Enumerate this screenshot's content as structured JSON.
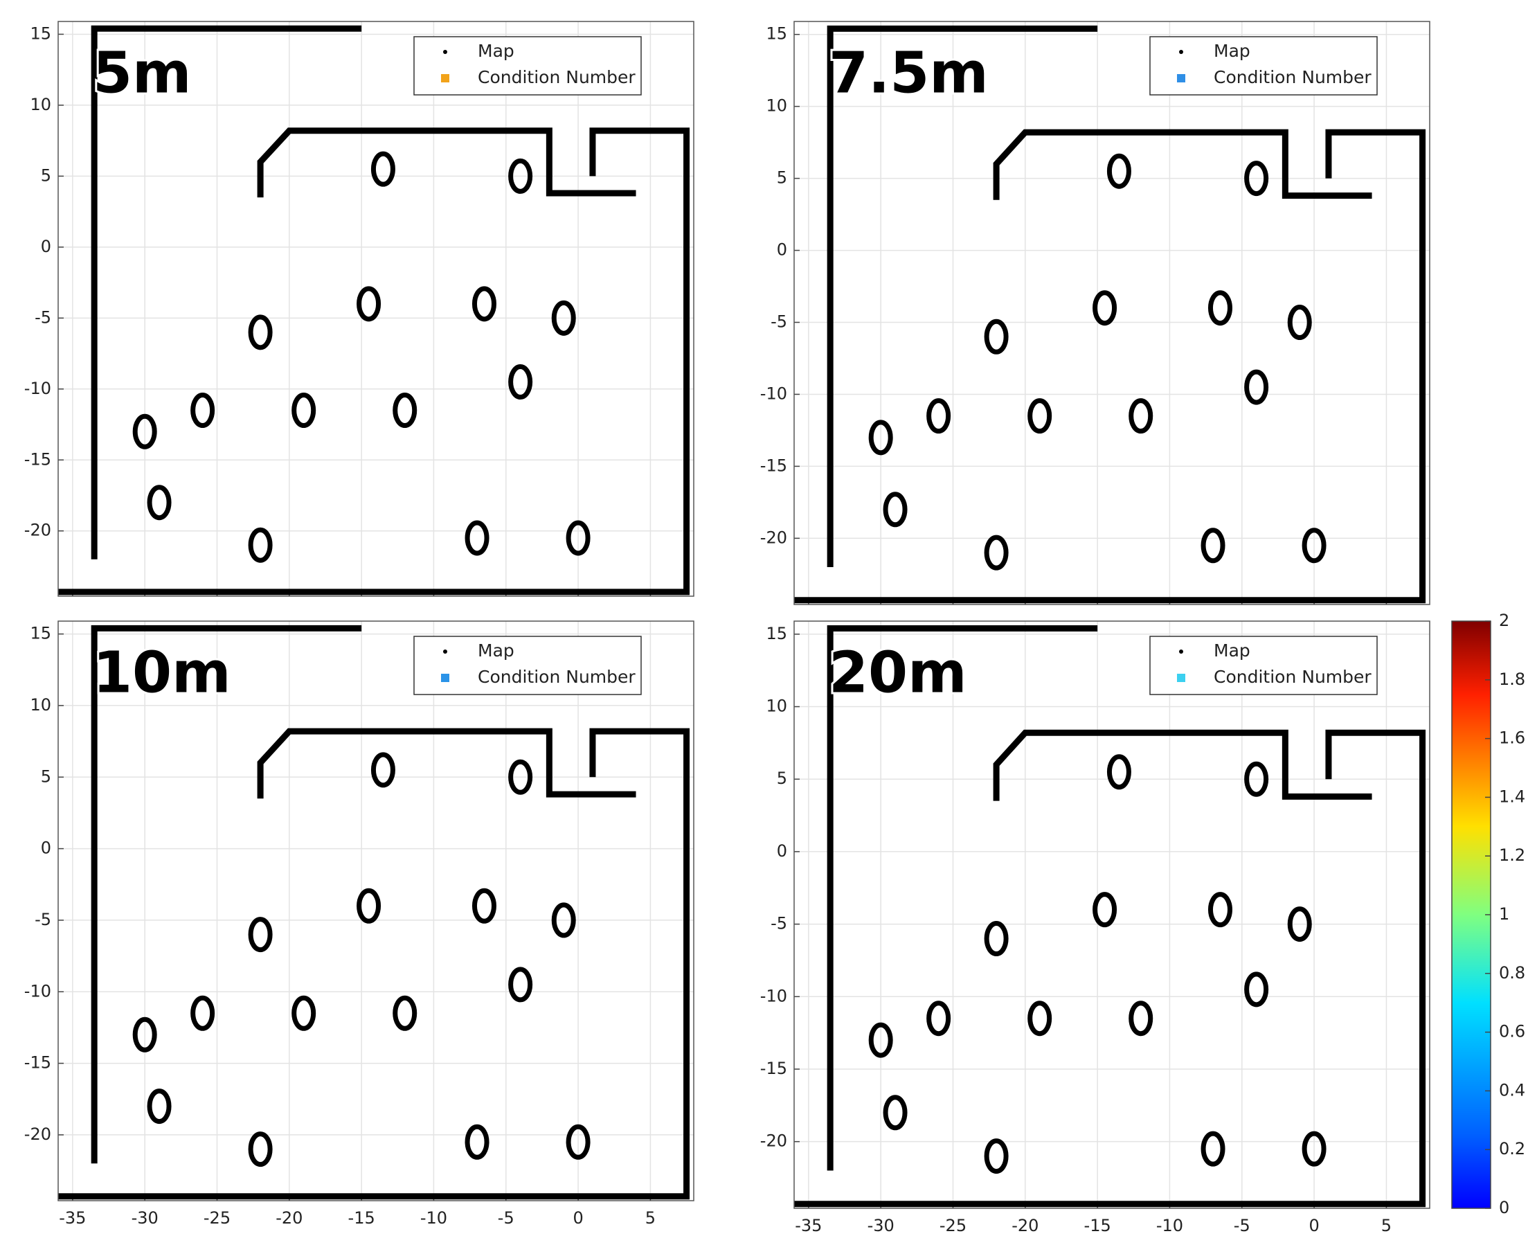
{
  "chart_data": [
    {
      "type": "scatter",
      "title": "5m",
      "xlim": [
        -36,
        8
      ],
      "ylim": [
        -24.6,
        15.9
      ],
      "xticks": [
        -35,
        -30,
        -25,
        -20,
        -15,
        -10,
        -5,
        0,
        5
      ],
      "yticks": [
        -20,
        -15,
        -10,
        -5,
        0,
        5,
        10,
        15
      ],
      "xtick_labels_shown": false,
      "grid": true,
      "series": [
        {
          "name": "Map",
          "color": "#000000"
        },
        {
          "name": "Condition Number",
          "color": "#f2a31a"
        }
      ]
    },
    {
      "type": "scatter",
      "title": "7.5m",
      "xlim": [
        -36,
        8
      ],
      "ylim": [
        -24.6,
        15.9
      ],
      "xticks": [
        -35,
        -30,
        -25,
        -20,
        -15,
        -10,
        -5,
        0,
        5
      ],
      "yticks": [
        -20,
        -15,
        -10,
        -5,
        0,
        5,
        10,
        15
      ],
      "xtick_labels_shown": false,
      "grid": true,
      "series": [
        {
          "name": "Map",
          "color": "#000000"
        },
        {
          "name": "Condition Number",
          "color": "#2f8fe6"
        }
      ]
    },
    {
      "type": "scatter",
      "title": "10m",
      "xlim": [
        -36,
        8
      ],
      "ylim": [
        -24.6,
        15.9
      ],
      "xticks": [
        -35,
        -30,
        -25,
        -20,
        -15,
        -10,
        -5,
        0,
        5
      ],
      "yticks": [
        -20,
        -15,
        -10,
        -5,
        0,
        5,
        10,
        15
      ],
      "xtick_labels_shown": true,
      "grid": true,
      "series": [
        {
          "name": "Map",
          "color": "#000000"
        },
        {
          "name": "Condition Number",
          "color": "#2b93e8"
        }
      ]
    },
    {
      "type": "scatter",
      "title": "20m",
      "xlim": [
        -36,
        8
      ],
      "ylim": [
        -24.6,
        15.9
      ],
      "xticks": [
        -35,
        -30,
        -25,
        -20,
        -15,
        -10,
        -5,
        0,
        5
      ],
      "yticks": [
        -20,
        -15,
        -10,
        -5,
        0,
        5,
        10,
        15
      ],
      "xtick_labels_shown": true,
      "grid": true,
      "series": [
        {
          "name": "Map",
          "color": "#000000"
        },
        {
          "name": "Condition Number",
          "color": "#3cd0f0"
        }
      ]
    },
    {
      "type": "colorbar",
      "colormap": "jet",
      "ylim": [
        0,
        2
      ],
      "yticks": [
        0,
        0.2,
        0.4,
        0.6,
        0.8,
        1,
        1.2,
        1.4,
        1.6,
        1.8,
        2
      ]
    }
  ]
}
